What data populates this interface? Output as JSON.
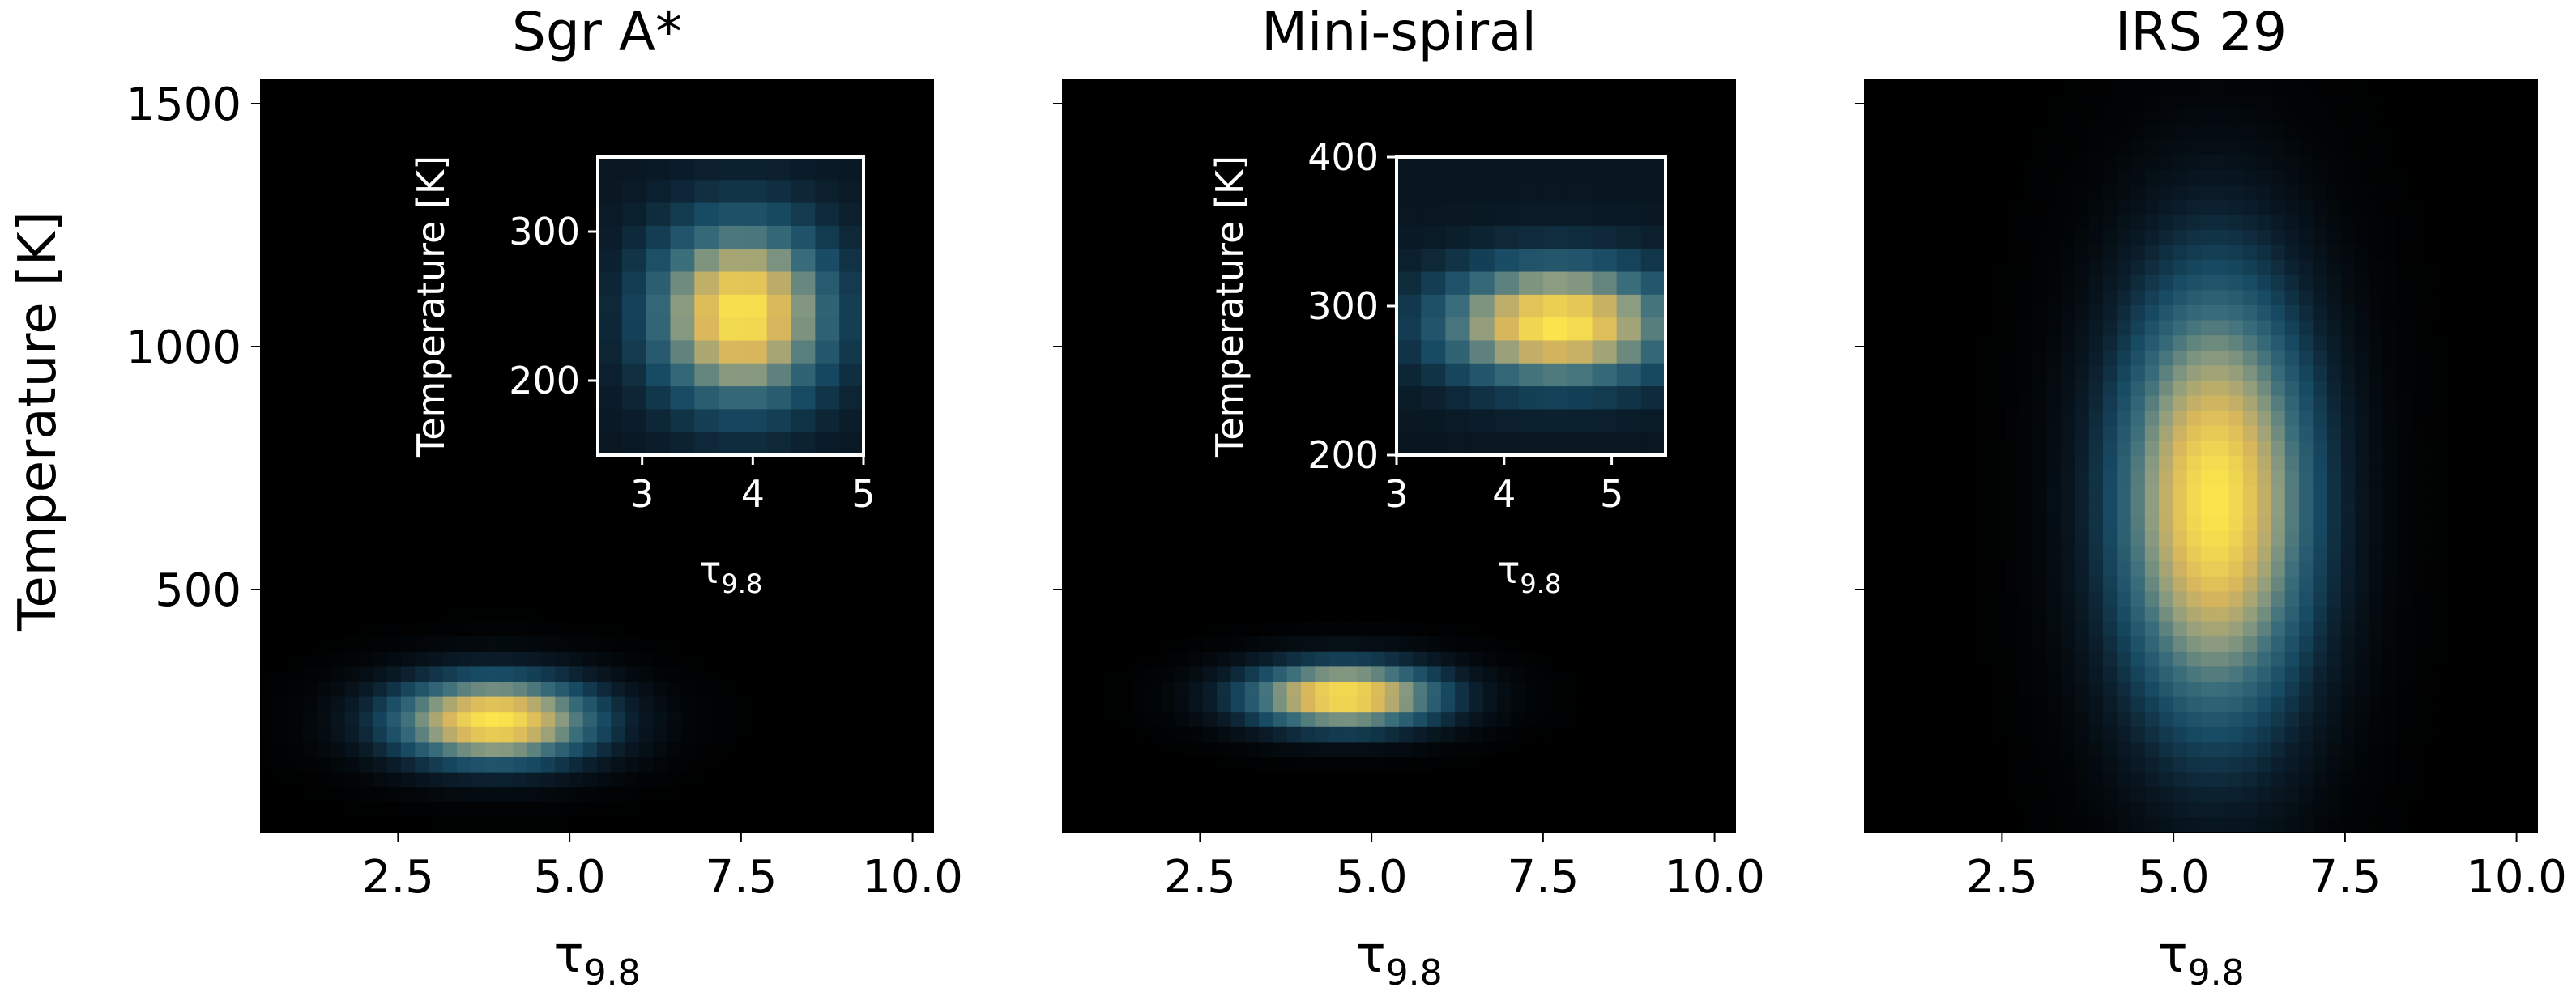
{
  "figure": {
    "shared_ylabel": "Temperature [K]"
  },
  "chart_data": [
    {
      "type": "heatmap",
      "title": "Sgr A*",
      "xlabel": "τ",
      "xlabel_sub": "9.8",
      "ylabel": "Temperature [K]",
      "xlim": [
        0.5,
        10.3
      ],
      "ylim": [
        0,
        1550
      ],
      "x_ticks": [
        2.5,
        5.0,
        7.5,
        10.0
      ],
      "x_tick_labels": [
        "2.5",
        "5.0",
        "7.5",
        "10.0"
      ],
      "y_ticks": [
        500,
        1000,
        1500
      ],
      "y_tick_labels": [
        "500",
        "1000",
        "1500"
      ],
      "y_tick_labels_visible": true,
      "density_peak": {
        "x": 3.9,
        "y": 230
      },
      "density_spread": {
        "x": 1.0,
        "y": 60
      },
      "inset": {
        "xlabel": "τ",
        "xlabel_sub": "9.8",
        "ylabel": "Temperature [K]",
        "xlim": [
          2.6,
          5.0
        ],
        "ylim": [
          150,
          350
        ],
        "x_ticks": [
          3,
          4,
          5
        ],
        "x_tick_labels": [
          "3",
          "4",
          "5"
        ],
        "y_ticks": [
          200,
          300
        ],
        "y_tick_labels": [
          "200",
          "300"
        ],
        "density_peak": {
          "x": 3.9,
          "y": 245
        },
        "density_spread": {
          "x": 0.55,
          "y": 42
        }
      }
    },
    {
      "type": "heatmap",
      "title": "Mini-spiral",
      "xlabel": "τ",
      "xlabel_sub": "9.8",
      "xlim": [
        0.5,
        10.3
      ],
      "ylim": [
        0,
        1550
      ],
      "x_ticks": [
        2.5,
        5.0,
        7.5,
        10.0
      ],
      "x_tick_labels": [
        "2.5",
        "5.0",
        "7.5",
        "10.0"
      ],
      "y_ticks": [
        500,
        1000,
        1500
      ],
      "y_tick_labels_visible": false,
      "density_peak": {
        "x": 4.6,
        "y": 280
      },
      "density_spread": {
        "x": 0.95,
        "y": 45
      },
      "inset": {
        "xlabel": "τ",
        "xlabel_sub": "9.8",
        "ylabel": "Temperature [K]",
        "xlim": [
          3.0,
          5.5
        ],
        "ylim": [
          200,
          400
        ],
        "x_ticks": [
          3,
          4,
          5
        ],
        "x_tick_labels": [
          "3",
          "4",
          "5"
        ],
        "y_ticks": [
          200,
          300,
          400
        ],
        "y_tick_labels": [
          "200",
          "300",
          "400"
        ],
        "density_peak": {
          "x": 4.5,
          "y": 288
        },
        "density_spread": {
          "x": 0.75,
          "y": 28
        }
      }
    },
    {
      "type": "heatmap",
      "title": "IRS 29",
      "xlabel": "τ",
      "xlabel_sub": "9.8",
      "xlim": [
        0.5,
        10.3
      ],
      "ylim": [
        0,
        1550
      ],
      "x_ticks": [
        2.5,
        5.0,
        7.5,
        10.0
      ],
      "x_tick_labels": [
        "2.5",
        "5.0",
        "7.5",
        "10.0"
      ],
      "y_ticks": [
        500,
        1000,
        1500
      ],
      "y_tick_labels_visible": false,
      "density_peak": {
        "x": 5.6,
        "y": 680
      },
      "density_spread": {
        "x": 0.95,
        "y": 300
      }
    }
  ],
  "colors": {
    "background": "#000000",
    "colormap": [
      "#000000",
      "#0b1e2c",
      "#174a63",
      "#3c6f7c",
      "#8d9c80",
      "#d8b65c",
      "#fbe54c"
    ],
    "axis_text": "#000000",
    "inset_text": "#ffffff"
  }
}
